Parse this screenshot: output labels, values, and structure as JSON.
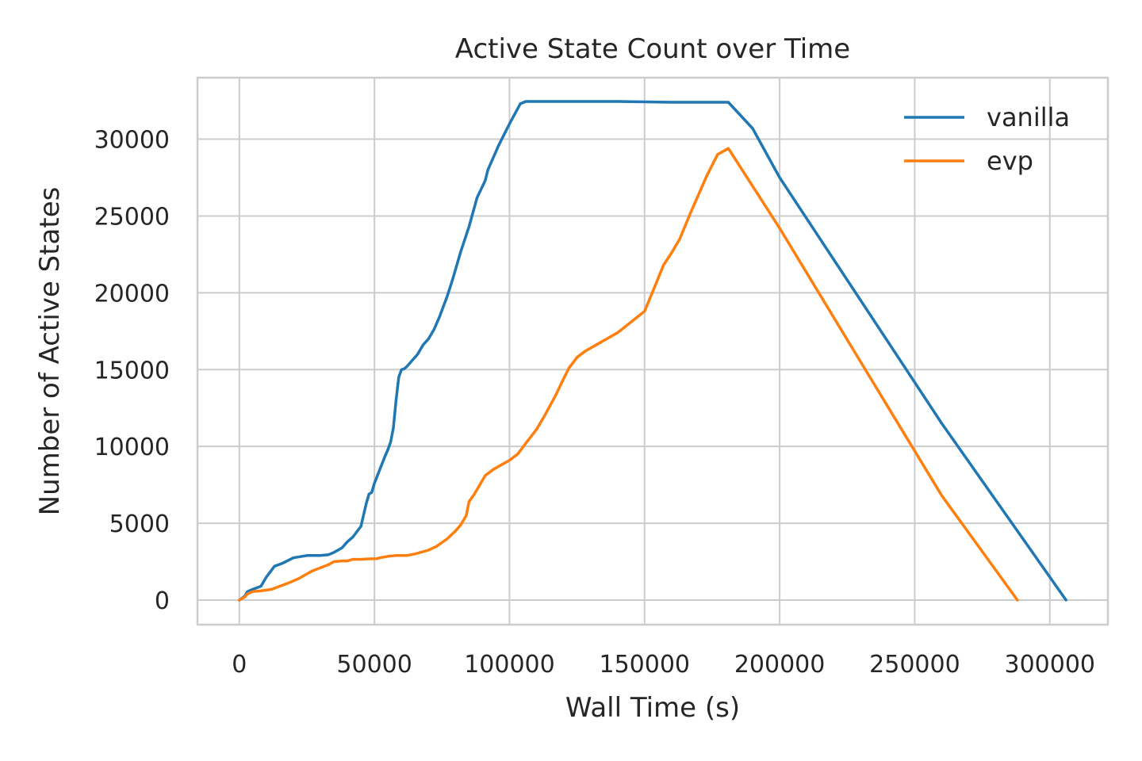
{
  "chart_data": {
    "type": "line",
    "title": "Active State Count over Time",
    "xlabel": "Wall Time (s)",
    "ylabel": "Number of Active States",
    "xlim": [
      -15500,
      321500
    ],
    "ylim": [
      -1600,
      34000
    ],
    "x_ticks": [
      0,
      50000,
      100000,
      150000,
      200000,
      250000,
      300000
    ],
    "y_ticks": [
      0,
      5000,
      10000,
      15000,
      20000,
      25000,
      30000
    ],
    "grid": true,
    "legend_position": "top-right",
    "series": [
      {
        "name": "vanilla",
        "color": "#1f77b4",
        "x": [
          0,
          2000,
          3000,
          5000,
          8000,
          10000,
          13000,
          16000,
          20000,
          25000,
          30000,
          33000,
          35000,
          38000,
          40000,
          42000,
          45000,
          47000,
          48000,
          49000,
          50000,
          52000,
          54000,
          55000,
          56000,
          57000,
          58000,
          59000,
          60000,
          61000,
          62000,
          64000,
          66000,
          68000,
          70000,
          72000,
          74000,
          77000,
          79000,
          82000,
          85000,
          88000,
          91000,
          92000,
          94000,
          96000,
          100000,
          104000,
          106000,
          110000,
          120000,
          140000,
          160000,
          170000,
          181000,
          190000,
          200000,
          230000,
          260000,
          306000
        ],
        "y": [
          0,
          250,
          550,
          700,
          900,
          1500,
          2200,
          2400,
          2750,
          2900,
          2900,
          2950,
          3100,
          3400,
          3800,
          4100,
          4800,
          6300,
          6900,
          7000,
          7600,
          8500,
          9400,
          9800,
          10300,
          11200,
          13000,
          14500,
          15000,
          15050,
          15200,
          15600,
          16000,
          16600,
          17000,
          17600,
          18400,
          19800,
          20900,
          22700,
          24300,
          26200,
          27300,
          28000,
          28800,
          29600,
          31000,
          32300,
          32450,
          32450,
          32450,
          32450,
          32400,
          32400,
          32400,
          30700,
          27500,
          19500,
          11500,
          0
        ]
      },
      {
        "name": "evp",
        "color": "#ff7f0e",
        "x": [
          0,
          2000,
          3000,
          5000,
          8000,
          12000,
          15000,
          18000,
          22000,
          25000,
          27000,
          30000,
          33000,
          35000,
          38000,
          40000,
          42000,
          45000,
          48000,
          51000,
          52000,
          55000,
          58000,
          62000,
          65000,
          70000,
          73000,
          77000,
          80000,
          82000,
          84000,
          85000,
          87000,
          89000,
          91000,
          94000,
          97000,
          100000,
          103000,
          106000,
          110000,
          113000,
          117000,
          120000,
          122000,
          125000,
          128000,
          133000,
          140000,
          145000,
          150000,
          154000,
          157000,
          160000,
          163000,
          167000,
          170000,
          173000,
          177000,
          181000,
          200000,
          230000,
          260000,
          288000
        ],
        "y": [
          0,
          200,
          400,
          550,
          600,
          700,
          900,
          1100,
          1400,
          1700,
          1900,
          2100,
          2300,
          2500,
          2550,
          2550,
          2650,
          2650,
          2680,
          2700,
          2750,
          2850,
          2900,
          2900,
          3000,
          3250,
          3500,
          4000,
          4500,
          4900,
          5500,
          6400,
          6900,
          7500,
          8100,
          8500,
          8800,
          9100,
          9500,
          10200,
          11100,
          12000,
          13300,
          14400,
          15100,
          15800,
          16200,
          16700,
          17400,
          18100,
          18800,
          20500,
          21800,
          22600,
          23500,
          25200,
          26400,
          27600,
          29000,
          29400,
          24200,
          15500,
          6800,
          0
        ]
      }
    ]
  }
}
